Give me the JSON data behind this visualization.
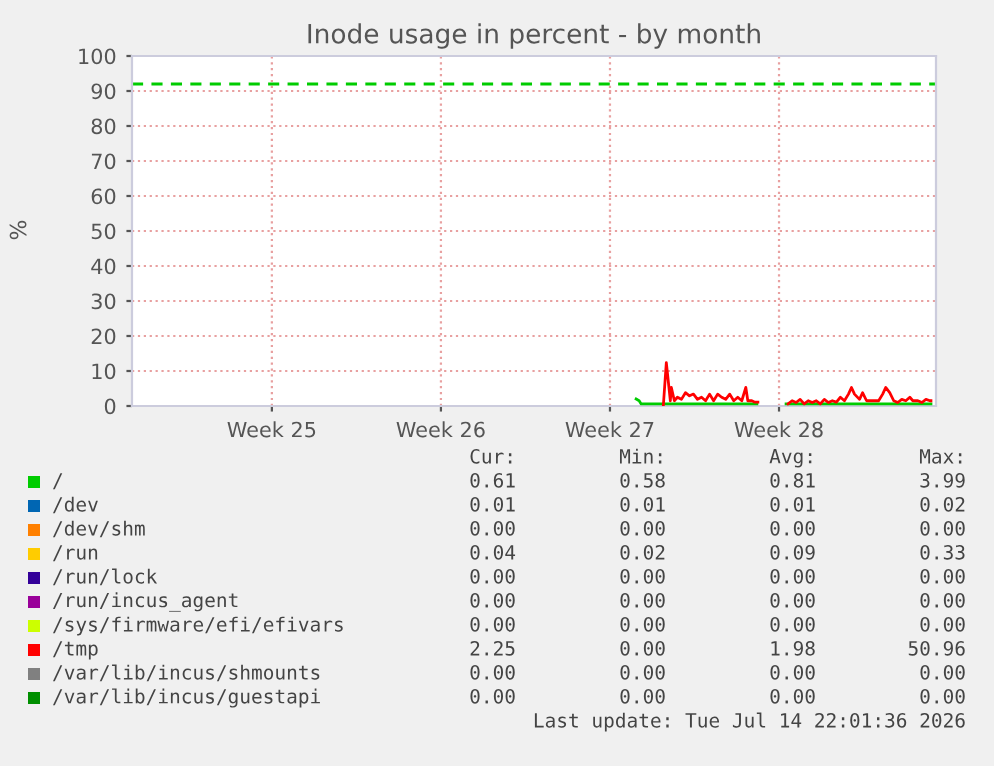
{
  "chart_data": {
    "type": "line",
    "title": "Inode usage in percent - by month",
    "ylabel": "%",
    "xlim": [
      "2026-06-11T15:00",
      "2026-07-14T22:00"
    ],
    "xticks": [
      {
        "value": "2026-06-17T10:00",
        "label": "Week 25"
      },
      {
        "value": "2026-06-24T10:00",
        "label": "Week 26"
      },
      {
        "value": "2026-07-01T10:00",
        "label": "Week 27"
      },
      {
        "value": "2026-07-08T10:00",
        "label": "Week 28"
      }
    ],
    "ylim": [
      0,
      100
    ],
    "yticks": [
      0,
      10,
      20,
      30,
      40,
      50,
      60,
      70,
      80,
      90,
      100
    ],
    "grid": true,
    "legend": "bottom",
    "marker": "none",
    "line_style": "solid",
    "ref_lines": [
      {
        "axis": "y",
        "value": 92,
        "color": "#00cc00",
        "line_style": "dashed"
      }
    ],
    "series": [
      {
        "name": "/",
        "color": "#00cc00",
        "x": [
          "2026-07-02T12:00",
          "2026-07-02T15:00",
          "2026-07-02T17:00",
          "2026-07-07T12:00",
          "2026-07-08T03:00",
          "2026-07-08T17:00",
          "2026-07-14T17:00"
        ],
        "values": [
          2,
          1.5,
          0.6,
          0.6,
          null,
          0.6,
          0.6
        ]
      },
      {
        "name": "/dev",
        "color": "#0066b3"
      },
      {
        "name": "/dev/shm",
        "color": "#ff8000"
      },
      {
        "name": "/run",
        "color": "#ffcc00"
      },
      {
        "name": "/run/lock",
        "color": "#330099"
      },
      {
        "name": "/run/incus_agent",
        "color": "#990099"
      },
      {
        "name": "/sys/firmware/efi/efivars",
        "color": "#ccff00"
      },
      {
        "name": "/tmp",
        "color": "#ff0000",
        "x": [
          "2026-07-03T15:00",
          "2026-07-03T18:00",
          "2026-07-03T22:00",
          "2026-07-03T23:00",
          "2026-07-04T02:00",
          "2026-07-04T05:00",
          "2026-07-04T09:00",
          "2026-07-04T13:00",
          "2026-07-04T17:00",
          "2026-07-04T21:00",
          "2026-07-05T01:00",
          "2026-07-05T05:00",
          "2026-07-05T09:00",
          "2026-07-05T13:00",
          "2026-07-05T17:00",
          "2026-07-05T21:00",
          "2026-07-06T01:00",
          "2026-07-06T05:00",
          "2026-07-06T09:00",
          "2026-07-06T13:00",
          "2026-07-06T17:00",
          "2026-07-06T21:00",
          "2026-07-07T01:00",
          "2026-07-07T03:00",
          "2026-07-07T07:00",
          "2026-07-07T10:00",
          "2026-07-07T13:00",
          "2026-07-08T03:00",
          "2026-07-08T19:00",
          "2026-07-08T23:00",
          "2026-07-09T03:00",
          "2026-07-09T07:00",
          "2026-07-09T11:00",
          "2026-07-09T15:00",
          "2026-07-09T19:00",
          "2026-07-09T23:00",
          "2026-07-10T03:00",
          "2026-07-10T07:00",
          "2026-07-10T11:00",
          "2026-07-10T15:00",
          "2026-07-10T19:00",
          "2026-07-10T23:00",
          "2026-07-11T03:00",
          "2026-07-11T07:00",
          "2026-07-11T10:00",
          "2026-07-11T13:00",
          "2026-07-11T18:00",
          "2026-07-11T21:00",
          "2026-07-12T01:00",
          "2026-07-12T05:00",
          "2026-07-12T09:00",
          "2026-07-12T13:00",
          "2026-07-12T17:00",
          "2026-07-12T20:00",
          "2026-07-13T00:00",
          "2026-07-13T04:00",
          "2026-07-13T08:00",
          "2026-07-13T12:00",
          "2026-07-13T16:00",
          "2026-07-13T20:00",
          "2026-07-13T23:00",
          "2026-07-14T04:00",
          "2026-07-14T08:00",
          "2026-07-14T12:00",
          "2026-07-14T16:00",
          "2026-07-14T17:00"
        ],
        "values": [
          0,
          12.4,
          1.5,
          5.3,
          1.5,
          2.5,
          1.9,
          3.8,
          2.9,
          3.4,
          1.9,
          2.5,
          1.5,
          3.4,
          1.5,
          3.4,
          2.5,
          1.9,
          3.4,
          1.5,
          2.5,
          1.5,
          5.3,
          1.5,
          1.5,
          1.1,
          1.1,
          null,
          0.6,
          1.5,
          1.0,
          1.9,
          0.6,
          1.5,
          1.0,
          1.5,
          0.6,
          1.9,
          1.0,
          1.5,
          1.1,
          2.5,
          1.5,
          3.4,
          5.3,
          3.4,
          1.9,
          3.8,
          1.5,
          1.5,
          1.5,
          1.5,
          3.4,
          5.3,
          3.8,
          1.5,
          1.0,
          1.9,
          1.5,
          2.5,
          1.5,
          1.5,
          1.0,
          1.9,
          1.5,
          1.5
        ]
      },
      {
        "name": "/var/lib/incus/shmounts",
        "color": "#808080"
      },
      {
        "name": "/var/lib/incus/guestapi",
        "color": "#008f00"
      }
    ],
    "annotations": [
      "Cur:",
      "Min:",
      "Avg:",
      "Max:",
      "0.61",
      "0.58",
      "0.81",
      "3.99",
      "0.01",
      "0.01",
      "0.01",
      "0.02",
      "0.00",
      "0.00",
      "0.00",
      "0.00",
      "0.04",
      "0.02",
      "0.09",
      "0.33",
      "0.00",
      "0.00",
      "0.00",
      "0.00",
      "0.00",
      "0.00",
      "0.00",
      "0.00",
      "0.00",
      "0.00",
      "0.00",
      "0.00",
      "2.25",
      "0.00",
      "1.98",
      "50.96",
      "0.00",
      "0.00",
      "0.00",
      "0.00",
      "0.00",
      "0.00",
      "0.00",
      "0.00",
      "Last update: Tue Jul 14 22:01:36 2026"
    ]
  }
}
